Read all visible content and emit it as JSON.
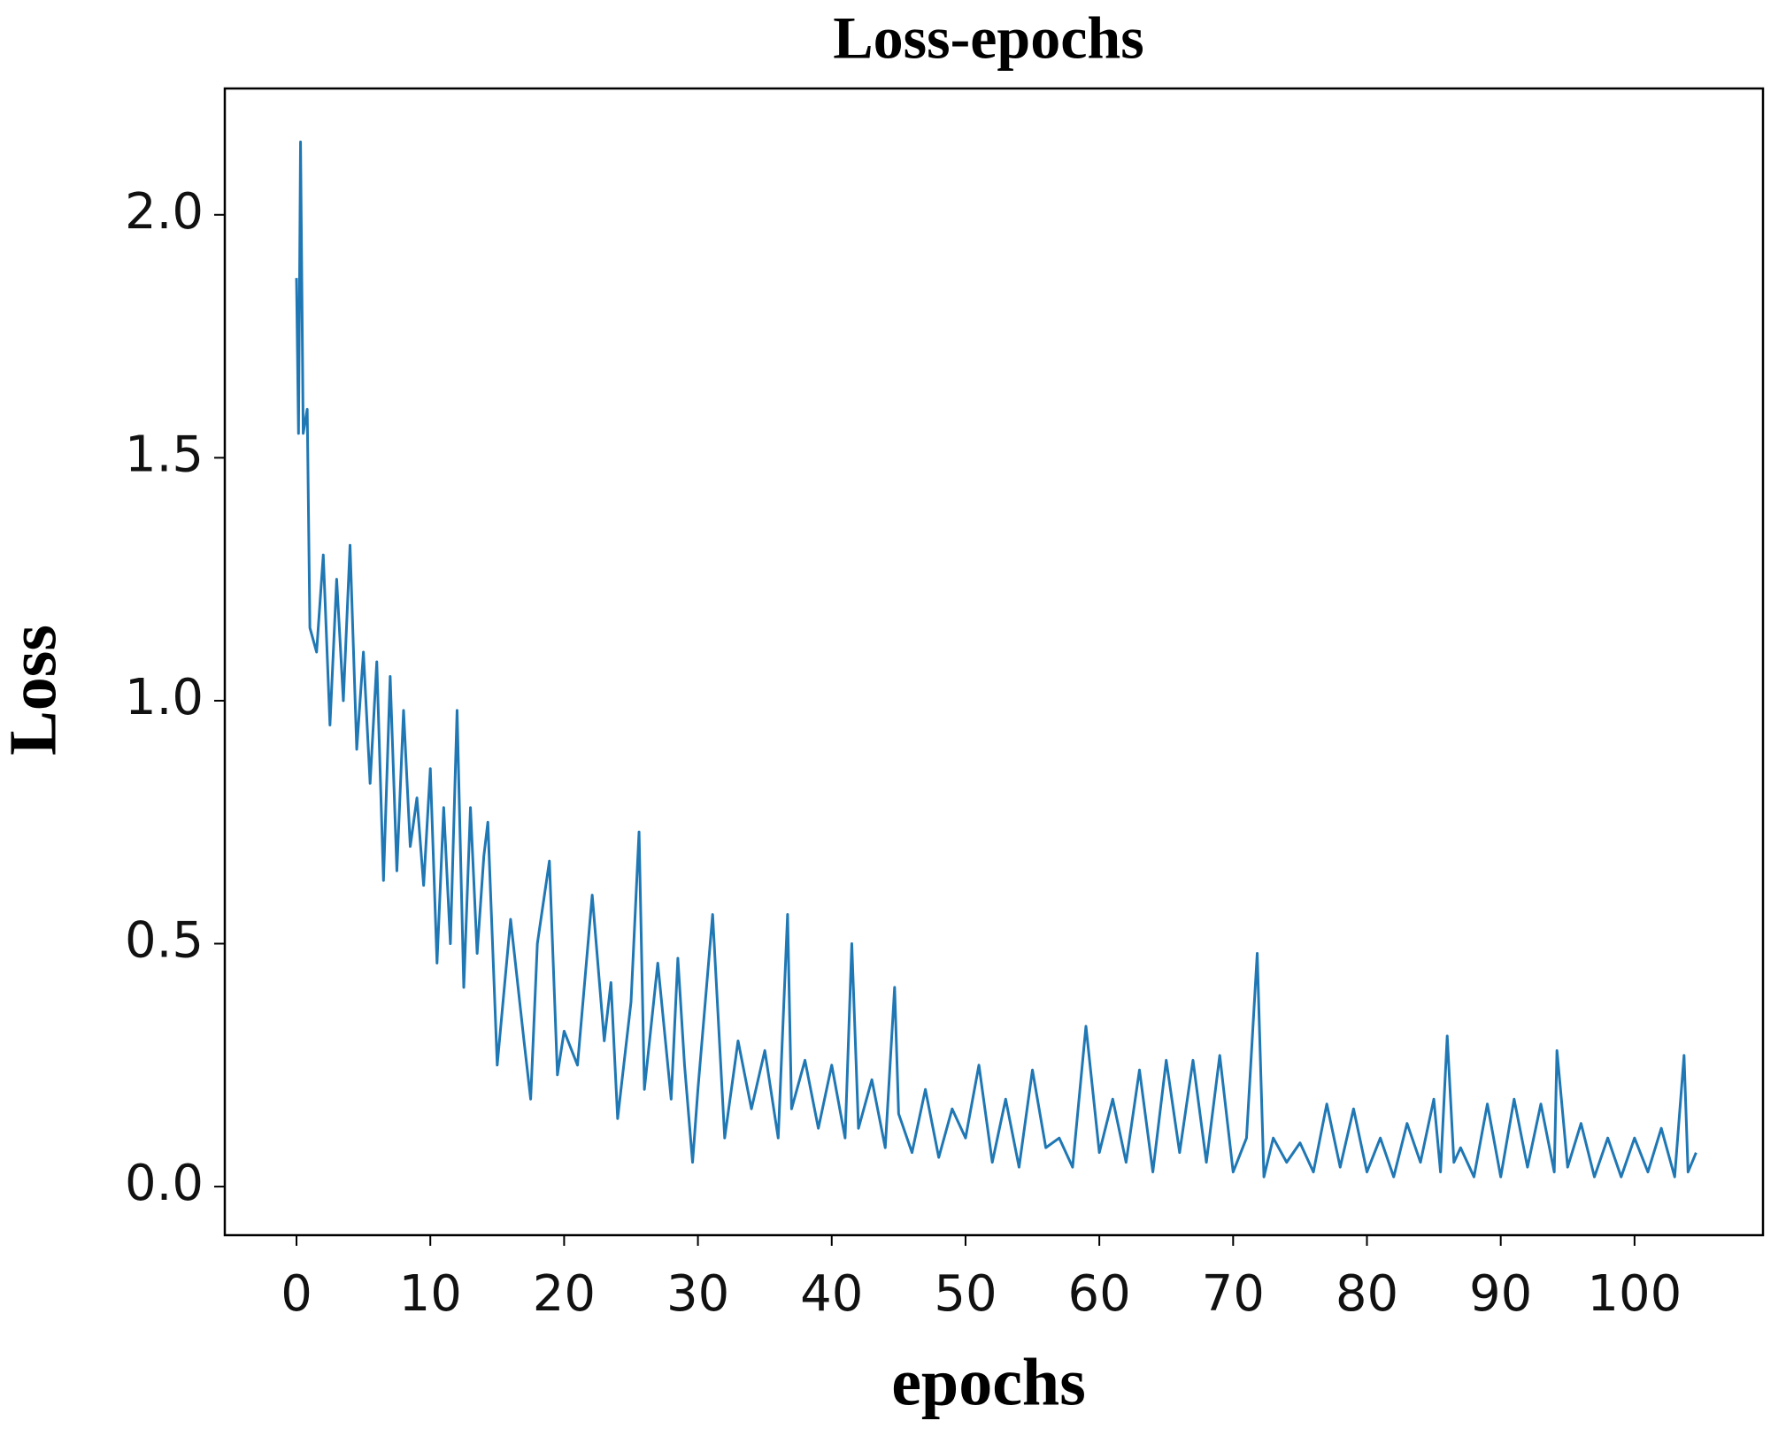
{
  "chart_data": {
    "type": "line",
    "title": "Loss-epochs",
    "x_label": "epochs",
    "y_label": "Loss",
    "x": [
      0,
      0.15,
      0.3,
      0.5,
      0.8,
      1,
      1.5,
      2,
      2.5,
      3,
      3.5,
      4,
      4.5,
      5,
      5.5,
      6,
      6.5,
      7,
      7.5,
      8,
      8.5,
      9,
      9.5,
      10,
      10.5,
      11,
      11.5,
      12,
      12.5,
      13,
      13.5,
      14,
      14.3,
      15,
      16,
      17,
      17.5,
      18,
      18.9,
      19.5,
      20,
      21,
      22.1,
      23,
      23.5,
      24,
      25,
      25.6,
      26,
      27,
      28,
      28.5,
      29,
      29.6,
      30,
      31.1,
      32,
      33,
      34,
      35,
      36,
      36.7,
      37,
      38,
      39,
      40,
      41,
      41.5,
      42,
      43,
      44,
      44.7,
      45,
      46,
      47,
      48,
      49,
      50,
      51,
      52,
      53,
      54,
      55,
      56,
      57,
      58,
      59,
      60,
      61,
      62,
      63,
      64,
      65,
      66,
      67,
      68,
      69,
      70,
      71,
      71.8,
      72.3,
      73,
      74,
      75,
      76,
      77,
      78,
      79,
      80,
      81,
      82,
      83,
      84,
      85,
      85.5,
      86,
      86.5,
      87,
      88,
      89,
      90,
      91,
      92,
      93,
      94,
      94.2,
      95,
      96,
      97,
      98,
      99,
      100,
      101,
      102,
      103,
      103.7,
      104,
      104.6
    ],
    "series": [
      {
        "name": "loss",
        "color": "#1f77b4",
        "values": [
          1.87,
          1.55,
          2.15,
          1.55,
          1.6,
          1.15,
          1.1,
          1.3,
          0.95,
          1.25,
          1.0,
          1.32,
          0.9,
          1.1,
          0.83,
          1.08,
          0.63,
          1.05,
          0.65,
          0.98,
          0.7,
          0.8,
          0.62,
          0.86,
          0.46,
          0.78,
          0.5,
          0.98,
          0.41,
          0.78,
          0.48,
          0.68,
          0.75,
          0.25,
          0.55,
          0.3,
          0.18,
          0.5,
          0.67,
          0.23,
          0.32,
          0.25,
          0.6,
          0.3,
          0.42,
          0.14,
          0.38,
          0.73,
          0.2,
          0.46,
          0.18,
          0.47,
          0.25,
          0.05,
          0.2,
          0.56,
          0.1,
          0.3,
          0.16,
          0.28,
          0.1,
          0.56,
          0.16,
          0.26,
          0.12,
          0.25,
          0.1,
          0.5,
          0.12,
          0.22,
          0.08,
          0.41,
          0.15,
          0.07,
          0.2,
          0.06,
          0.16,
          0.1,
          0.25,
          0.05,
          0.18,
          0.04,
          0.24,
          0.08,
          0.1,
          0.04,
          0.33,
          0.07,
          0.18,
          0.05,
          0.24,
          0.03,
          0.26,
          0.07,
          0.26,
          0.05,
          0.27,
          0.03,
          0.1,
          0.48,
          0.02,
          0.1,
          0.05,
          0.09,
          0.03,
          0.17,
          0.04,
          0.16,
          0.03,
          0.1,
          0.02,
          0.13,
          0.05,
          0.18,
          0.03,
          0.31,
          0.05,
          0.08,
          0.02,
          0.17,
          0.02,
          0.18,
          0.04,
          0.17,
          0.03,
          0.28,
          0.04,
          0.13,
          0.02,
          0.1,
          0.02,
          0.1,
          0.03,
          0.12,
          0.02,
          0.27,
          0.03,
          0.07
        ]
      }
    ],
    "xlim": [
      -5.36,
      109.6
    ],
    "ylim": [
      -0.1,
      2.26
    ],
    "xticks": [
      0,
      10,
      20,
      30,
      40,
      50,
      60,
      70,
      80,
      90,
      100
    ],
    "yticks": [
      {
        "value": 0,
        "label": "0.0"
      },
      {
        "value": 0.5,
        "label": "0.5"
      },
      {
        "value": 1,
        "label": "1.0"
      },
      {
        "value": 1.5,
        "label": "1.5"
      },
      {
        "value": 2,
        "label": "2.0"
      }
    ]
  }
}
